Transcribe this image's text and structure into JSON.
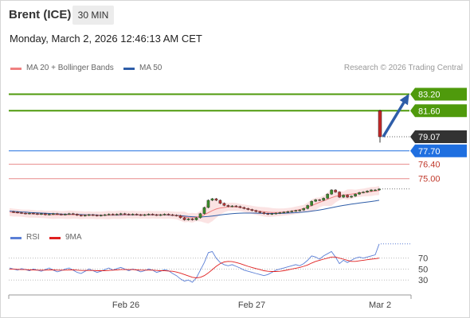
{
  "header": {
    "title": "Brent (ICE)",
    "interval": "30 MIN"
  },
  "timestamp": "Monday, March 2, 2026 12:46:13 AM CET",
  "legend": {
    "ma20": {
      "label": "MA 20 + Bollinger Bands",
      "color": "#f08080"
    },
    "ma50": {
      "label": "MA 50",
      "color": "#2e5da8"
    },
    "credit": "Research © 2026 Trading Central"
  },
  "rsi_legend": {
    "rsi": {
      "label": "RSI",
      "color": "#5b7fd6"
    },
    "ma9": {
      "label": "9MA",
      "color": "#e02020"
    }
  },
  "colors": {
    "target": "#4f9a0c",
    "current": "#333333",
    "pivot": "#1f6fe0",
    "support": "#e88a8a",
    "arrow": "#2e5da8"
  },
  "chart_data": {
    "type": "candlestick",
    "ylim": [
      70.5,
      84.4
    ],
    "x_ticks": [
      "Feb 26",
      "Feb 27",
      "Mar 2"
    ],
    "levels": [
      {
        "value": 83.2,
        "label": "83.20",
        "kind": "target"
      },
      {
        "value": 81.6,
        "label": "81.60",
        "kind": "target"
      },
      {
        "value": 79.07,
        "label": "79.07",
        "kind": "current"
      },
      {
        "value": 77.7,
        "label": "77.70",
        "kind": "pivot"
      },
      {
        "value": 76.4,
        "label": "76.40",
        "kind": "support"
      },
      {
        "value": 75.0,
        "label": "75.00",
        "kind": "support"
      }
    ],
    "price_path": [
      71.8,
      71.75,
      71.7,
      71.65,
      71.6,
      71.65,
      71.6,
      71.55,
      71.6,
      71.5,
      71.55,
      71.6,
      71.55,
      71.5,
      71.55,
      71.6,
      71.55,
      71.45,
      71.4,
      71.45,
      71.5,
      71.45,
      71.4,
      71.45,
      71.5,
      71.55,
      71.5,
      71.55,
      71.6,
      71.55,
      71.5,
      71.55,
      71.5,
      71.45,
      71.5,
      71.55,
      71.5,
      71.45,
      71.5,
      71.55,
      71.5,
      71.45,
      71.4,
      71.2,
      71.0,
      71.1,
      71.0,
      71.2,
      71.6,
      72.2,
      72.9,
      73.05,
      72.9,
      72.6,
      72.4,
      72.3,
      72.35,
      72.3,
      72.2,
      72.1,
      72.0,
      71.9,
      71.8,
      71.7,
      71.6,
      71.55,
      71.6,
      71.65,
      71.7,
      71.75,
      71.8,
      71.85,
      71.9,
      71.95,
      72.1,
      72.4,
      72.8,
      72.95,
      72.9,
      73.1,
      73.5,
      73.9,
      73.7,
      73.2,
      73.4,
      73.2,
      73.3,
      73.5,
      73.65,
      73.7,
      73.8,
      73.9,
      73.9,
      74.0
    ],
    "ma20_path": [
      71.75,
      71.7,
      71.68,
      71.65,
      71.62,
      71.6,
      71.58,
      71.55,
      71.55,
      71.52,
      71.5,
      71.5,
      71.5,
      71.48,
      71.48,
      71.5,
      71.5,
      71.48,
      71.46,
      71.46,
      71.46,
      71.45,
      71.44,
      71.44,
      71.45,
      71.46,
      71.47,
      71.48,
      71.5,
      71.5,
      71.5,
      71.5,
      71.49,
      71.48,
      71.48,
      71.49,
      71.49,
      71.48,
      71.48,
      71.49,
      71.48,
      71.46,
      71.42,
      71.35,
      71.28,
      71.22,
      71.2,
      71.25,
      71.35,
      71.5,
      71.7,
      71.9,
      72.05,
      72.15,
      72.2,
      72.25,
      72.27,
      72.25,
      72.2,
      72.12,
      72.05,
      71.98,
      71.9,
      71.83,
      71.78,
      71.74,
      71.72,
      71.72,
      71.73,
      71.76,
      71.8,
      71.85,
      71.92,
      72.0,
      72.1,
      72.22,
      72.38,
      72.55,
      72.7,
      72.85,
      73.0,
      73.15,
      73.28,
      73.35,
      73.4,
      73.45,
      73.5,
      73.55,
      73.6,
      73.65,
      73.7,
      73.75,
      73.8,
      73.85
    ],
    "ma50_path": [
      71.85,
      71.82,
      71.8,
      71.77,
      71.75,
      71.72,
      71.7,
      71.68,
      71.66,
      71.64,
      71.62,
      71.6,
      71.58,
      71.56,
      71.55,
      71.54,
      71.53,
      71.52,
      71.51,
      71.5,
      71.49,
      71.48,
      71.47,
      71.46,
      71.46,
      71.46,
      71.46,
      71.46,
      71.46,
      71.47,
      71.47,
      71.47,
      71.47,
      71.47,
      71.47,
      71.47,
      71.47,
      71.47,
      71.47,
      71.47,
      71.46,
      71.45,
      71.43,
      71.4,
      71.37,
      71.33,
      71.3,
      71.28,
      71.28,
      71.3,
      71.33,
      71.37,
      71.42,
      71.47,
      71.52,
      71.56,
      71.6,
      71.63,
      71.65,
      71.66,
      71.66,
      71.66,
      71.65,
      71.64,
      71.63,
      71.62,
      71.62,
      71.62,
      71.63,
      71.64,
      71.66,
      71.68,
      71.7,
      71.73,
      71.76,
      71.8,
      71.85,
      71.9,
      71.96,
      72.02,
      72.1,
      72.18,
      72.26,
      72.33,
      72.4,
      72.46,
      72.52,
      72.58,
      72.63,
      72.68,
      72.73,
      72.78,
      72.83,
      72.9
    ],
    "last_bar": {
      "open": 81.6,
      "close": 79.07,
      "high": 81.7,
      "low": 78.5
    },
    "projection": {
      "from": 79.07,
      "to": 83.2
    },
    "rsi": {
      "ylim": [
        10,
        100
      ],
      "ticks": [
        70,
        50,
        30
      ],
      "rsi_path": [
        52,
        50,
        48,
        51,
        49,
        47,
        50,
        48,
        46,
        49,
        52,
        48,
        45,
        47,
        50,
        52,
        48,
        44,
        42,
        46,
        50,
        47,
        44,
        46,
        49,
        52,
        48,
        51,
        53,
        50,
        47,
        50,
        48,
        45,
        47,
        50,
        48,
        44,
        46,
        49,
        47,
        42,
        38,
        32,
        28,
        30,
        26,
        34,
        48,
        62,
        80,
        82,
        70,
        62,
        58,
        56,
        58,
        55,
        52,
        48,
        46,
        44,
        42,
        40,
        38,
        40,
        44,
        48,
        50,
        52,
        54,
        56,
        58,
        56,
        60,
        66,
        74,
        72,
        68,
        74,
        78,
        82,
        72,
        60,
        66,
        62,
        66,
        70,
        72,
        70,
        72,
        74,
        76,
        96
      ],
      "ma_path": [
        50,
        50,
        49.5,
        49,
        49,
        48.5,
        48.5,
        48,
        48,
        48,
        48.5,
        48.5,
        48,
        48,
        48,
        48.5,
        48.5,
        48,
        47.5,
        47.5,
        47.5,
        47.5,
        47,
        47,
        47,
        47.5,
        48,
        48.5,
        49,
        49,
        49,
        49,
        48.5,
        48,
        48,
        48,
        48,
        47.5,
        47,
        47,
        46.5,
        46,
        44.5,
        42.5,
        40,
        37.5,
        35,
        34,
        35,
        38,
        43,
        49,
        55,
        60,
        63,
        64,
        63.5,
        62,
        60,
        57.5,
        55,
        53,
        51,
        49,
        47,
        46,
        45.5,
        45.5,
        46,
        47,
        48.5,
        50,
        51.5,
        53,
        55,
        57.5,
        61,
        64,
        66,
        68,
        70,
        72,
        72,
        70,
        68,
        66,
        64,
        64,
        65,
        66,
        67,
        68,
        69,
        70
      ]
    }
  }
}
